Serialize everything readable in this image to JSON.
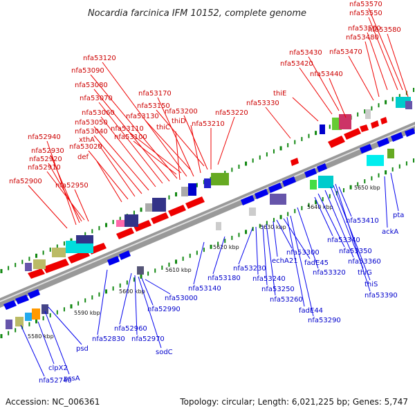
{
  "title": "Nocardia farcinica IFM 10152, complete genome",
  "footer": {
    "accession": "Accession: NC_006361",
    "summary": "Topology: circular; Length: 6,021,225 bp; Genes: 5,747"
  },
  "colors": {
    "forward": "#ee0000",
    "reverse": "#0000ee",
    "backbone": "#888888",
    "tick": "#118811"
  },
  "scale_labels": [
    "5580 kbp",
    "5590 kbp",
    "5600 kbp",
    "5610 kbp",
    "5620 kbp",
    "5630 kbp",
    "5640 kbp",
    "5650 kbp"
  ],
  "top_labels": [
    "nfa53570",
    "nfa53550",
    "nfa53500",
    "nfa53580",
    "nfa53480",
    "nfa53470",
    "nfa53430",
    "nfa53420",
    "nfa53440",
    "nfa53120",
    "nfa53090",
    "nfa53080",
    "nfa53070",
    "nfa53060",
    "nfa53050",
    "nfa53040",
    "xthA",
    "nfa53020",
    "def",
    "nfa53170",
    "nfa53150",
    "nfa53130",
    "nfa53110",
    "nfa53100",
    "thiC",
    "thiD",
    "nfa53200",
    "nfa53210",
    "nfa53220",
    "nfa53330",
    "thiE",
    "nfa52940",
    "nfa52930",
    "nfa52920",
    "nfa52910",
    "nfa52900",
    "nfa52950"
  ],
  "bottom_labels": [
    "nfa52740",
    "clpX2",
    "pssA",
    "psd",
    "nfa52830",
    "nfa52960",
    "nfa52970",
    "sodC",
    "nfa52990",
    "nfa53000",
    "nfa53140",
    "nfa53180",
    "nfa53230",
    "nfa53240",
    "nfa53250",
    "nfa53260",
    "echA21",
    "nfa53300",
    "fadE45",
    "nfa53320",
    "fadE44",
    "nfa53290",
    "nfa53340",
    "nfa53350",
    "nfa53360",
    "thiG",
    "thiS",
    "nfa53390",
    "nfa53410",
    "ackA",
    "pta"
  ]
}
